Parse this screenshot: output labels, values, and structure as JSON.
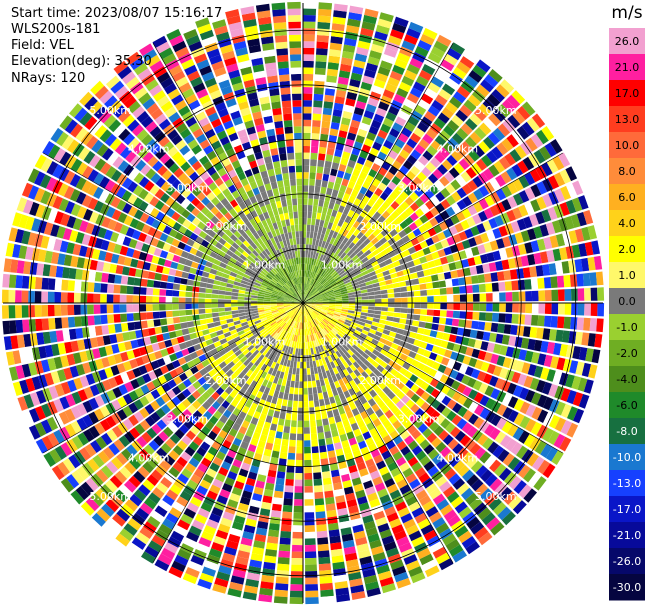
{
  "header": {
    "start_time": "Start time: 2023/08/07 15:16:17",
    "instrument": "WLS200s-181",
    "field": "Field: VEL",
    "elevation": "Elevation(deg): 35.30",
    "nrays": "NRays: 120"
  },
  "chart_data": {
    "type": "heatmap",
    "subtype": "radar-ppi",
    "range_ring_labels_km": [
      1.0,
      2.0,
      3.0,
      4.0,
      5.0
    ],
    "range_ring_label_texts": [
      "1.00km",
      "2.00km",
      "3.00km",
      "4.00km",
      "5.00km"
    ],
    "nrays": 120,
    "colorbar": {
      "unit": "m/s",
      "ticks": [
        26.0,
        21.0,
        17.0,
        13.0,
        10.0,
        8.0,
        6.0,
        4.0,
        2.0,
        1.0,
        0.0,
        -1.0,
        -2.0,
        -4.0,
        -6.0,
        -8.0,
        -10.0,
        -13.0,
        -17.0,
        -21.0,
        -26.0,
        -30.0
      ],
      "tick_labels": [
        "26.0",
        "21.0",
        "17.0",
        "13.0",
        "10.0",
        "8.0",
        "6.0",
        "4.0",
        "2.0",
        "1.0",
        "0.0",
        "-1.0",
        "-2.0",
        "-4.0",
        "-6.0",
        "-8.0",
        "-10.0",
        "-13.0",
        "-17.0",
        "-21.0",
        "-26.0",
        "-30.0"
      ],
      "colors": [
        "#f2a0d0",
        "#ff1fa0",
        "#ff0000",
        "#ff3d1f",
        "#ff6a3a",
        "#ff8c3a",
        "#ffb020",
        "#ffd21a",
        "#ffff00",
        "#fff86a",
        "#7a7a7a",
        "#9ad030",
        "#6fae23",
        "#4e8e1c",
        "#1f8a2a",
        "#177040",
        "#1a78d0",
        "#1640ff",
        "#0a16c8",
        "#070a9a",
        "#06086a",
        "#050540"
      ]
    }
  }
}
